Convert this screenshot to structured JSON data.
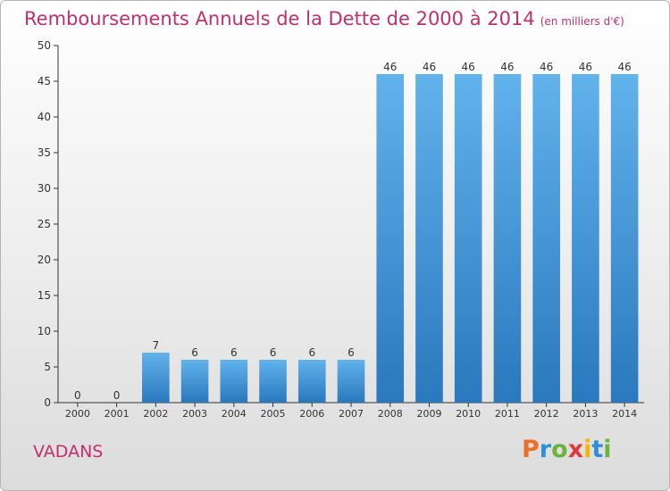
{
  "header": {
    "title": "Remboursements Annuels de la Dette de 2000 à 2014",
    "subtitle": "(en milliers d'€)"
  },
  "footer": {
    "commune": "VADANS",
    "logo_text": "Proxiti",
    "logo_colors": [
      "#e8702a",
      "#2f8fd8",
      "#6ab43e",
      "#e03b3b",
      "#f2b705",
      "#2f8fd8",
      "#6ab43e"
    ]
  },
  "chart_data": {
    "type": "bar",
    "categories": [
      "2000",
      "2001",
      "2002",
      "2003",
      "2004",
      "2005",
      "2006",
      "2007",
      "2008",
      "2009",
      "2010",
      "2011",
      "2012",
      "2013",
      "2014"
    ],
    "values": [
      0,
      0,
      7,
      6,
      6,
      6,
      6,
      6,
      46,
      46,
      46,
      46,
      46,
      46,
      46
    ],
    "ylim": [
      0,
      50
    ],
    "yticks": [
      0,
      5,
      10,
      15,
      20,
      25,
      30,
      35,
      40,
      45,
      50
    ],
    "grid": false,
    "legend": "none",
    "colors": {
      "bar_light": "#62b2ec",
      "bar_dark": "#2a78bd",
      "axis": "#333333",
      "text": "#333333"
    }
  }
}
